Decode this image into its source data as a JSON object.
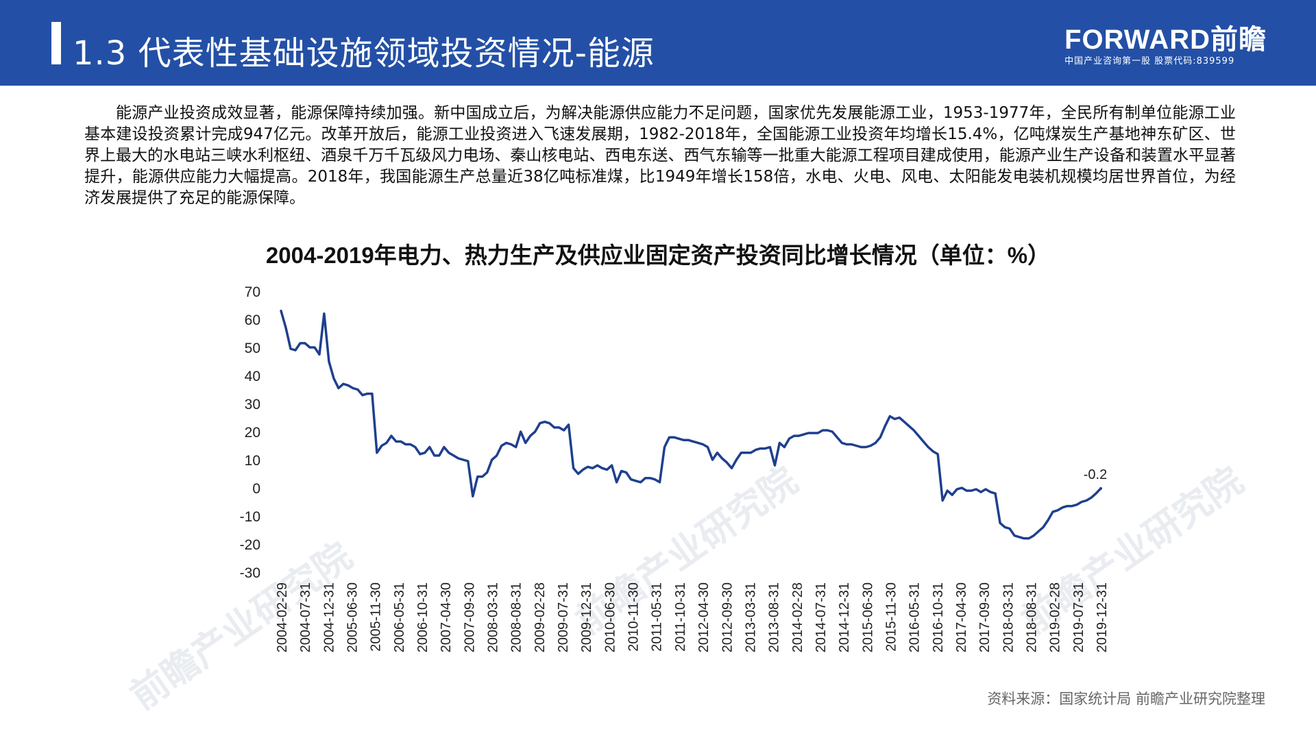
{
  "header": {
    "title": "1.3 代表性基础设施领域投资情况-能源",
    "brand_logo": "FORWARD前瞻",
    "brand_sub": "中国产业咨询第一股 股票代码:839599"
  },
  "paragraph": "能源产业投资成效显著，能源保障持续加强。新中国成立后，为解决能源供应能力不足问题，国家优先发展能源工业，1953-1977年，全民所有制单位能源工业基本建设投资累计完成947亿元。改革开放后，能源工业投资进入飞速发展期，1982-2018年，全国能源工业投资年均增长15.4%，亿吨煤炭生产基地神东矿区、世界上最大的水电站三峡水利枢纽、酒泉千万千瓦级风力电场、秦山核电站、西电东送、西气东输等一批重大能源工程项目建成使用，能源产业生产设备和装置水平显著提升，能源供应能力大幅提高。2018年，我国能源生产总量近38亿吨标准煤，比1949年增长158倍，水电、火电、风电、太阳能发电装机规模均居世界首位，为经济发展提供了充足的能源保障。",
  "watermark": "前瞻产业研究院",
  "source": "资料来源：国家统计局 前瞻产业研究院整理",
  "colors": {
    "header": "#2350a6",
    "line": "#1f3f8f"
  },
  "chart_data": {
    "type": "line",
    "title": "2004-2019年电力、热力生产及供应业固定资产投资同比增长情况（单位：%）",
    "ylim": [
      -30,
      70
    ],
    "yticks": [
      "70",
      "60",
      "50",
      "40",
      "30",
      "20",
      "10",
      "0",
      "-10",
      "-20",
      "-30"
    ],
    "xticks": [
      "2004-02-29",
      "2004-07-31",
      "2004-12-31",
      "2005-06-30",
      "2005-11-30",
      "2006-05-31",
      "2006-10-31",
      "2007-04-30",
      "2007-09-30",
      "2008-03-31",
      "2008-08-31",
      "2009-02-28",
      "2009-07-31",
      "2009-12-31",
      "2010-06-30",
      "2010-11-30",
      "2011-05-31",
      "2011-10-31",
      "2012-04-30",
      "2012-09-30",
      "2013-03-31",
      "2013-08-31",
      "2014-02-28",
      "2014-07-31",
      "2014-12-31",
      "2015-06-30",
      "2015-11-30",
      "2016-05-31",
      "2016-10-31",
      "2017-04-30",
      "2017-09-30",
      "2018-03-31",
      "2018-08-31",
      "2019-02-28",
      "2019-07-31",
      "2019-12-31"
    ],
    "annotation": {
      "label": "-0.2",
      "value": -0.2
    },
    "grid": false,
    "legend": "none",
    "series": [
      {
        "values": [
          63.0,
          57.0,
          49.5,
          49.0,
          51.5,
          51.5,
          50.0,
          50.0,
          47.5,
          62.0,
          45.0,
          39.0,
          35.5,
          37.0,
          36.5,
          35.5,
          35.0,
          33.0,
          33.5,
          33.5,
          12.5,
          15.0,
          16.0,
          18.5,
          16.5,
          16.5,
          15.5,
          15.5,
          14.5,
          12.0,
          12.5,
          14.5,
          11.5,
          11.5,
          14.5,
          12.5,
          11.5,
          10.5,
          10.0,
          9.5,
          -3.0,
          4.0,
          4.0,
          5.5,
          10.0,
          11.5,
          15.0,
          16.0,
          15.5,
          14.5,
          20.0,
          16.0,
          18.5,
          20.0,
          23.0,
          23.5,
          23.0,
          21.5,
          21.5,
          20.5,
          22.5,
          7.0,
          5.0,
          6.5,
          7.5,
          7.0,
          8.0,
          7.0,
          6.5,
          8.0,
          2.0,
          6.0,
          5.5,
          3.0,
          2.5,
          2.0,
          3.5,
          3.5,
          3.0,
          2.0,
          14.5,
          18.0,
          18.0,
          17.5,
          17.0,
          17.0,
          16.5,
          16.0,
          15.5,
          14.5,
          10.0,
          12.5,
          10.5,
          9.0,
          7.0,
          10.0,
          12.5,
          12.5,
          12.5,
          13.5,
          14.0,
          14.0,
          14.5,
          8.0,
          16.0,
          14.5,
          17.5,
          18.5,
          18.5,
          19.0,
          19.5,
          19.5,
          19.5,
          20.5,
          20.5,
          20.0,
          18.0,
          16.0,
          15.5,
          15.5,
          15.0,
          14.5,
          14.5,
          15.0,
          16.0,
          18.0,
          22.0,
          25.5,
          24.5,
          25.0,
          23.5,
          22.0,
          20.5,
          18.5,
          16.5,
          14.5,
          13.0,
          12.0,
          -4.5,
          -1.0,
          -2.5,
          -0.5,
          0.0,
          -1.0,
          -1.0,
          -0.5,
          -1.5,
          -0.5,
          -1.5,
          -2.0,
          -12.5,
          -14.0,
          -14.5,
          -17.0,
          -17.5,
          -18.0,
          -18.0,
          -17.0,
          -15.5,
          -14.0,
          -11.5,
          -8.5,
          -8.0,
          -7.0,
          -6.5,
          -6.5,
          -6.0,
          -5.0,
          -4.5,
          -3.5,
          -2.0,
          -0.2
        ]
      }
    ]
  }
}
